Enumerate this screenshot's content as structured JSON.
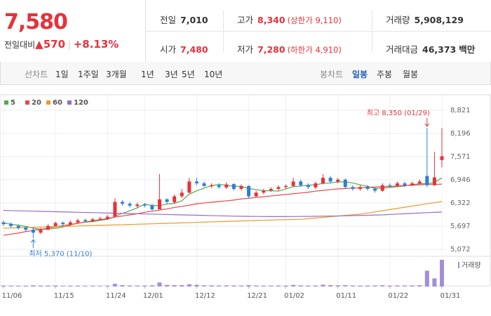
{
  "header": {
    "price": "7,580",
    "change_label": "전일대비",
    "change": "570",
    "change_pct": "+8.13%",
    "details": [
      {
        "label": "전일",
        "value": "7,010"
      },
      {
        "label": "고가",
        "value": "8,340",
        "extra": "(상한가 9,110)"
      },
      {
        "label": "거래량",
        "value": "5,908,129"
      },
      {
        "label": "시가",
        "value": "7,480"
      },
      {
        "label": "저가",
        "value": "7,280",
        "extra": "(하한가 4,910)"
      },
      {
        "label": "거래대금",
        "value": "46,373",
        "unit": "백만"
      }
    ]
  },
  "tabs": {
    "line_label": "선차트",
    "line_tabs": [
      "1일",
      "1주일",
      "3개월",
      "1년",
      "3년",
      "5년",
      "10년"
    ],
    "candle_label": "봉차트",
    "candle_tabs": [
      "일봉",
      "주봉",
      "월봉"
    ],
    "active": "일봉"
  },
  "chart_data": {
    "type": "candlestick",
    "categories": [
      "11/06",
      null,
      null,
      null,
      null,
      null,
      null,
      "11/15",
      null,
      null,
      null,
      null,
      null,
      null,
      "11/24",
      null,
      null,
      null,
      null,
      "12/01",
      null,
      null,
      null,
      null,
      null,
      null,
      "12/12",
      null,
      null,
      null,
      null,
      null,
      null,
      "12/21",
      null,
      null,
      null,
      null,
      "01/02",
      null,
      null,
      null,
      null,
      null,
      null,
      "01/11",
      null,
      null,
      null,
      null,
      null,
      null,
      "01/22",
      null,
      null,
      null,
      null,
      null,
      null,
      "01/31"
    ],
    "open": [
      5800,
      5760,
      5700,
      5660,
      5600,
      5520,
      5610,
      5700,
      5790,
      5740,
      5800,
      5860,
      5830,
      5890,
      5900,
      5960,
      6350,
      6300,
      6240,
      6280,
      6260,
      6150,
      6420,
      6340,
      6500,
      6600,
      6900,
      6850,
      6770,
      6800,
      6740,
      6830,
      6700,
      6780,
      6500,
      6600,
      6660,
      6700,
      6750,
      6780,
      6900,
      6800,
      6740,
      6850,
      7000,
      6900,
      6950,
      6750,
      6700,
      6760,
      6700,
      6650,
      6800,
      6790,
      6850,
      6800,
      6850,
      7050,
      6800,
      7480
    ],
    "high": [
      5850,
      5800,
      5750,
      5700,
      5650,
      5650,
      5750,
      5820,
      5820,
      5850,
      5900,
      5900,
      5920,
      5950,
      6000,
      6450,
      6400,
      6350,
      6330,
      6320,
      6300,
      7100,
      6450,
      6550,
      6700,
      7000,
      7000,
      6900,
      6850,
      6850,
      6880,
      6850,
      6820,
      6800,
      6650,
      6700,
      6750,
      6800,
      6820,
      7000,
      6950,
      6850,
      6900,
      7100,
      7050,
      7000,
      6980,
      6800,
      6800,
      6800,
      6750,
      6850,
      6850,
      6900,
      6900,
      6900,
      6950,
      8350,
      7700,
      8340
    ],
    "low": [
      5700,
      5650,
      5600,
      5550,
      5370,
      5480,
      5580,
      5680,
      5700,
      5700,
      5780,
      5800,
      5800,
      5850,
      5870,
      5950,
      6250,
      6200,
      6200,
      6200,
      6100,
      6150,
      6300,
      6300,
      6450,
      6580,
      6800,
      6750,
      6720,
      6700,
      6700,
      6650,
      6650,
      6450,
      6480,
      6560,
      6620,
      6650,
      6700,
      6750,
      6750,
      6700,
      6700,
      6820,
      6850,
      6850,
      6700,
      6650,
      6650,
      6650,
      6600,
      6620,
      6720,
      6750,
      6750,
      6780,
      6820,
      6750,
      6780,
      7280
    ],
    "close": [
      5750,
      5700,
      5650,
      5600,
      5520,
      5600,
      5700,
      5780,
      5750,
      5800,
      5850,
      5830,
      5880,
      5900,
      5950,
      6350,
      6300,
      6250,
      6280,
      6250,
      6150,
      6420,
      6350,
      6500,
      6600,
      6900,
      6850,
      6780,
      6800,
      6750,
      6820,
      6700,
      6780,
      6500,
      6600,
      6650,
      6700,
      6750,
      6780,
      6900,
      6800,
      6750,
      6850,
      7000,
      6900,
      6950,
      6750,
      6700,
      6750,
      6700,
      6650,
      6800,
      6780,
      6850,
      6800,
      6850,
      6900,
      6800,
      7010,
      7580
    ],
    "up_color": "#e8313a",
    "down_color": "#2f7dd6",
    "series": [
      {
        "name": "5",
        "color": "#4cae4c",
        "values": [
          5780,
          5750,
          5720,
          5690,
          5640,
          5610,
          5610,
          5640,
          5670,
          5730,
          5780,
          5800,
          5820,
          5850,
          5880,
          5960,
          6040,
          6110,
          6190,
          6290,
          6250,
          6250,
          6290,
          6310,
          6380,
          6560,
          6650,
          6720,
          6790,
          6820,
          6800,
          6770,
          6770,
          6710,
          6680,
          6650,
          6650,
          6640,
          6700,
          6760,
          6780,
          6800,
          6810,
          6850,
          6860,
          6890,
          6890,
          6860,
          6810,
          6770,
          6710,
          6720,
          6740,
          6760,
          6780,
          6820,
          6840,
          6840,
          6870,
          7000
        ]
      },
      {
        "name": "20",
        "color": "#e9474d",
        "values": [
          5450,
          5480,
          5510,
          5550,
          5580,
          5610,
          5640,
          5680,
          5710,
          5740,
          5770,
          5810,
          5840,
          5870,
          5900,
          5940,
          5970,
          6000,
          6030,
          6070,
          6100,
          6130,
          6160,
          6200,
          6230,
          6260,
          6300,
          6320,
          6340,
          6360,
          6380,
          6400,
          6430,
          6450,
          6470,
          6490,
          6510,
          6530,
          6550,
          6570,
          6590,
          6610,
          6640,
          6660,
          6680,
          6700,
          6710,
          6720,
          6730,
          6740,
          6750,
          6760,
          6770,
          6780,
          6790,
          6800,
          6810,
          6820,
          6820,
          6830
        ]
      },
      {
        "name": "60",
        "color": "#f0992b",
        "values": [
          5640,
          5646,
          5652,
          5658,
          5664,
          5670,
          5676,
          5682,
          5688,
          5694,
          5700,
          5706,
          5712,
          5718,
          5724,
          5730,
          5736,
          5742,
          5748,
          5754,
          5760,
          5766,
          5772,
          5778,
          5784,
          5790,
          5800,
          5806,
          5812,
          5818,
          5824,
          5830,
          5836,
          5842,
          5848,
          5854,
          5860,
          5866,
          5872,
          5876,
          5880,
          5898,
          5915,
          5933,
          5950,
          5968,
          5985,
          6003,
          6020,
          6051,
          6082,
          6113,
          6144,
          6175,
          6206,
          6237,
          6268,
          6299,
          6330,
          6360
        ]
      },
      {
        "name": "120",
        "color": "#9b6bc9",
        "values": [
          6120,
          6115,
          6110,
          6105,
          6100,
          6095,
          6090,
          6085,
          6080,
          6075,
          6070,
          6065,
          6060,
          6055,
          6050,
          6045,
          6040,
          6035,
          6030,
          6025,
          6020,
          6015,
          6010,
          6005,
          6000,
          5995,
          5990,
          5985,
          5980,
          5975,
          5970,
          5965,
          5962,
          5960,
          5958,
          5956,
          5955,
          5955,
          5955,
          5956,
          5958,
          5960,
          5962,
          5965,
          5968,
          5970,
          5975,
          5980,
          5985,
          5990,
          5995,
          6000,
          6010,
          6020,
          6030,
          6040,
          6050,
          6060,
          6068,
          6075
        ]
      }
    ],
    "volume": {
      "name": "거래량",
      "color": "#a48fd6",
      "values": [
        200000,
        180000,
        150000,
        170000,
        260000,
        190000,
        210000,
        230000,
        150000,
        160000,
        170000,
        150000,
        160000,
        140000,
        180000,
        600000,
        300000,
        220000,
        200000,
        210000,
        260000,
        900000,
        350000,
        300000,
        320000,
        500000,
        380000,
        260000,
        240000,
        220000,
        250000,
        230000,
        200000,
        300000,
        220000,
        180000,
        170000,
        190000,
        200000,
        350000,
        240000,
        200000,
        230000,
        400000,
        300000,
        260000,
        280000,
        200000,
        190000,
        210000,
        220000,
        260000,
        200000,
        230000,
        210000,
        240000,
        280000,
        3500000,
        1800000,
        5908129
      ]
    },
    "ylim": [
      5072,
      8821
    ],
    "yticks": [
      {
        "value": 8821,
        "label": "8,821"
      },
      {
        "value": 8196,
        "label": "8,196"
      },
      {
        "value": 7571,
        "label": "7,571"
      },
      {
        "value": 6946,
        "label": "6,946"
      },
      {
        "value": 6322,
        "label": "6,322"
      },
      {
        "value": 5697,
        "label": "5,697"
      },
      {
        "value": 5072,
        "label": "5,072"
      }
    ],
    "grid": true,
    "annotations": [
      {
        "text": "최고 8,350 (01/29)",
        "index": 57,
        "value": 8350,
        "side": "above"
      },
      {
        "text": "최저 5,370 (11/10)",
        "index": 4,
        "value": 5370,
        "side": "below"
      }
    ]
  }
}
